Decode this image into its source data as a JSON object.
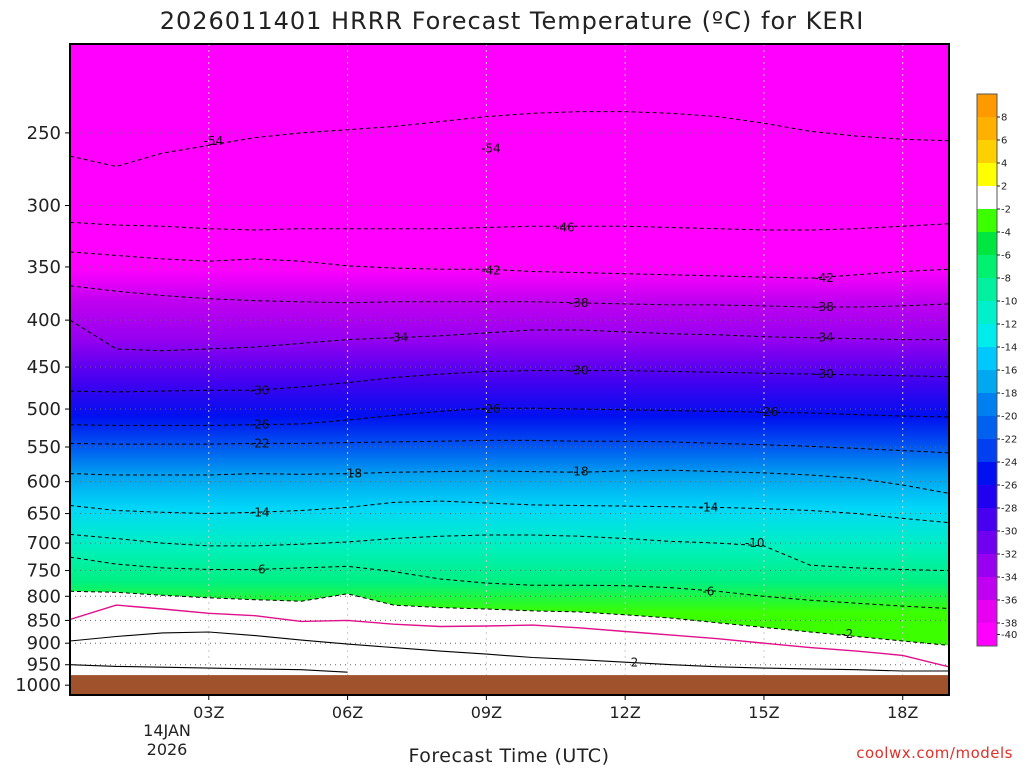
{
  "chart_data": {
    "type": "area",
    "title": "2026011401 HRRR Forecast Temperature (ºC) for KERI",
    "xlabel": "Forecast Time (UTC)",
    "credit": "coolwx.com/models",
    "x_ticks": [
      {
        "label": "03Z",
        "hour": 3
      },
      {
        "label": "06Z",
        "hour": 6
      },
      {
        "label": "09Z",
        "hour": 9
      },
      {
        "label": "12Z",
        "hour": 12
      },
      {
        "label": "15Z",
        "hour": 15
      },
      {
        "label": "18Z",
        "hour": 18
      }
    ],
    "x_date_lines": [
      "14JAN",
      "2026"
    ],
    "xlim": [
      0,
      19
    ],
    "y_ticks": [
      250,
      300,
      350,
      400,
      450,
      500,
      550,
      600,
      650,
      700,
      750,
      800,
      850,
      900,
      950,
      1000
    ],
    "ylim_hpa": [
      200,
      1025
    ],
    "y_scale": "log",
    "ground": {
      "color": "#a0522d",
      "pressure_hpa": 975
    },
    "hours": [
      0,
      1,
      2,
      3,
      4,
      5,
      6,
      7,
      8,
      9,
      10,
      11,
      12,
      13,
      14,
      15,
      16,
      17,
      18,
      19
    ],
    "contours": [
      {
        "value": -54,
        "pressures": [
          265,
          272,
          263,
          258,
          253,
          250,
          248,
          246,
          243,
          240,
          238,
          237,
          237,
          238,
          240,
          244,
          249,
          252,
          254,
          255
        ]
      },
      {
        "value": -46,
        "pressures": [
          313,
          315,
          316,
          318,
          319,
          318,
          318,
          318,
          318,
          317,
          316,
          316,
          316,
          317,
          318,
          319,
          319,
          318,
          316,
          314
        ]
      },
      {
        "value": -42,
        "pressures": [
          337,
          340,
          343,
          345,
          343,
          345,
          349,
          351,
          352,
          352,
          354,
          355,
          356,
          357,
          358,
          359,
          360,
          357,
          354,
          352
        ]
      },
      {
        "value": -38,
        "pressures": [
          367,
          372,
          376,
          379,
          381,
          382,
          383,
          382,
          382,
          382,
          382,
          383,
          384,
          385,
          385,
          386,
          387,
          387,
          386,
          384
        ]
      },
      {
        "value": -34,
        "pressures": [
          400,
          430,
          432,
          430,
          428,
          424,
          420,
          418,
          416,
          413,
          410,
          410,
          412,
          414,
          415,
          417,
          418,
          419,
          420,
          420
        ]
      },
      {
        "value": -30,
        "pressures": [
          478,
          479,
          478,
          477,
          477,
          473,
          468,
          462,
          458,
          455,
          454,
          454,
          454,
          455,
          456,
          457,
          458,
          459,
          460,
          461
        ]
      },
      {
        "value": -26,
        "pressures": [
          520,
          521,
          521,
          521,
          520,
          519,
          514,
          508,
          503,
          499,
          499,
          500,
          501,
          502,
          503,
          504,
          505,
          507,
          509,
          510
        ]
      },
      {
        "value": -22,
        "pressures": [
          545,
          546,
          546,
          546,
          545,
          545,
          544,
          543,
          542,
          541,
          541,
          542,
          542,
          543,
          545,
          547,
          549,
          552,
          555,
          558
        ]
      },
      {
        "value": -18,
        "pressures": [
          588,
          590,
          590,
          590,
          588,
          589,
          588,
          586,
          585,
          584,
          585,
          586,
          584,
          583,
          585,
          587,
          590,
          595,
          605,
          618
        ]
      },
      {
        "value": -14,
        "pressures": [
          637,
          645,
          648,
          650,
          648,
          645,
          640,
          632,
          630,
          633,
          636,
          637,
          638,
          639,
          640,
          642,
          645,
          650,
          658,
          665
        ]
      },
      {
        "value": -10,
        "pressures": [
          685,
          692,
          700,
          705,
          705,
          702,
          698,
          692,
          688,
          686,
          686,
          688,
          692,
          697,
          700,
          705,
          740,
          745,
          748,
          750
        ]
      },
      {
        "value": -6,
        "pressures": [
          725,
          738,
          745,
          748,
          748,
          745,
          742,
          752,
          766,
          774,
          778,
          778,
          779,
          783,
          790,
          800,
          808,
          814,
          820,
          825
        ]
      },
      {
        "value": -2,
        "pressures": [
          790,
          792,
          798,
          803,
          807,
          810,
          795,
          818,
          823,
          826,
          830,
          832,
          838,
          845,
          855,
          865,
          875,
          885,
          895,
          905
        ]
      },
      {
        "value": 2,
        "pressures": [
          895,
          885,
          877,
          875,
          883,
          893,
          902,
          910,
          918,
          925,
          933,
          938,
          944,
          950,
          955,
          958,
          960,
          962,
          965,
          965
        ]
      },
      {
        "value": 6,
        "pressures": [
          950,
          954,
          956,
          958,
          960,
          962,
          968
        ]
      }
    ],
    "freezing_line": {
      "value": 0,
      "color": "#e0108a",
      "pressures": [
        848,
        818,
        826,
        835,
        840,
        852,
        850,
        858,
        863,
        862,
        860,
        866,
        874,
        882,
        890,
        900,
        910,
        918,
        928,
        955
      ]
    },
    "contour_labels": [
      {
        "text": "-54",
        "hour": 3.1,
        "p": 255
      },
      {
        "text": "-54",
        "hour": 9.1,
        "p": 260
      },
      {
        "text": "-46",
        "hour": 10.7,
        "p": 317
      },
      {
        "text": "-42",
        "hour": 9.1,
        "p": 353
      },
      {
        "text": "-42",
        "hour": 16.3,
        "p": 360
      },
      {
        "text": "-38",
        "hour": 11.0,
        "p": 383
      },
      {
        "text": "-38",
        "hour": 16.3,
        "p": 387
      },
      {
        "text": "-34",
        "hour": 7.1,
        "p": 418
      },
      {
        "text": "-34",
        "hour": 16.3,
        "p": 418
      },
      {
        "text": "-30",
        "hour": 4.1,
        "p": 477
      },
      {
        "text": "-30",
        "hour": 11.0,
        "p": 454
      },
      {
        "text": "-30",
        "hour": 16.3,
        "p": 458
      },
      {
        "text": "-26",
        "hour": 4.1,
        "p": 520
      },
      {
        "text": "-26",
        "hour": 9.1,
        "p": 500
      },
      {
        "text": "-26",
        "hour": 15.1,
        "p": 504
      },
      {
        "text": "-22",
        "hour": 4.1,
        "p": 545
      },
      {
        "text": "-18",
        "hour": 6.1,
        "p": 588
      },
      {
        "text": "-18",
        "hour": 11.0,
        "p": 585
      },
      {
        "text": "-14",
        "hour": 4.1,
        "p": 648
      },
      {
        "text": "-14",
        "hour": 13.8,
        "p": 640
      },
      {
        "text": "-10",
        "hour": 14.8,
        "p": 700
      },
      {
        "text": "-6",
        "hour": 4.1,
        "p": 748
      },
      {
        "text": "-6",
        "hour": 13.8,
        "p": 790
      },
      {
        "text": "-2",
        "hour": 16.8,
        "p": 880
      },
      {
        "text": "2",
        "hour": 12.2,
        "p": 945
      }
    ],
    "colorbar": {
      "tick_labels": [
        "8",
        "6",
        "4",
        "2",
        "-2",
        "-4",
        "-6",
        "-8",
        "-10",
        "-12",
        "-14",
        "-16",
        "-18",
        "-20",
        "-22",
        "-24",
        "-26",
        "-28",
        "-30",
        "-32",
        "-34",
        "-36",
        "-38",
        "-40"
      ],
      "colors_top_to_bottom": [
        "#ff9900",
        "#ffb000",
        "#ffd000",
        "#ffff00",
        "#ffffff",
        "#3cff00",
        "#00e640",
        "#00f070",
        "#00f0a0",
        "#00f0cc",
        "#00ecec",
        "#00c8ff",
        "#00a8f0",
        "#0080f0",
        "#0060f0",
        "#0040f0",
        "#0010f0",
        "#2000f0",
        "#4800f0",
        "#7000f0",
        "#9800f0",
        "#c000f0",
        "#e800f0",
        "#ff00ff"
      ]
    }
  }
}
